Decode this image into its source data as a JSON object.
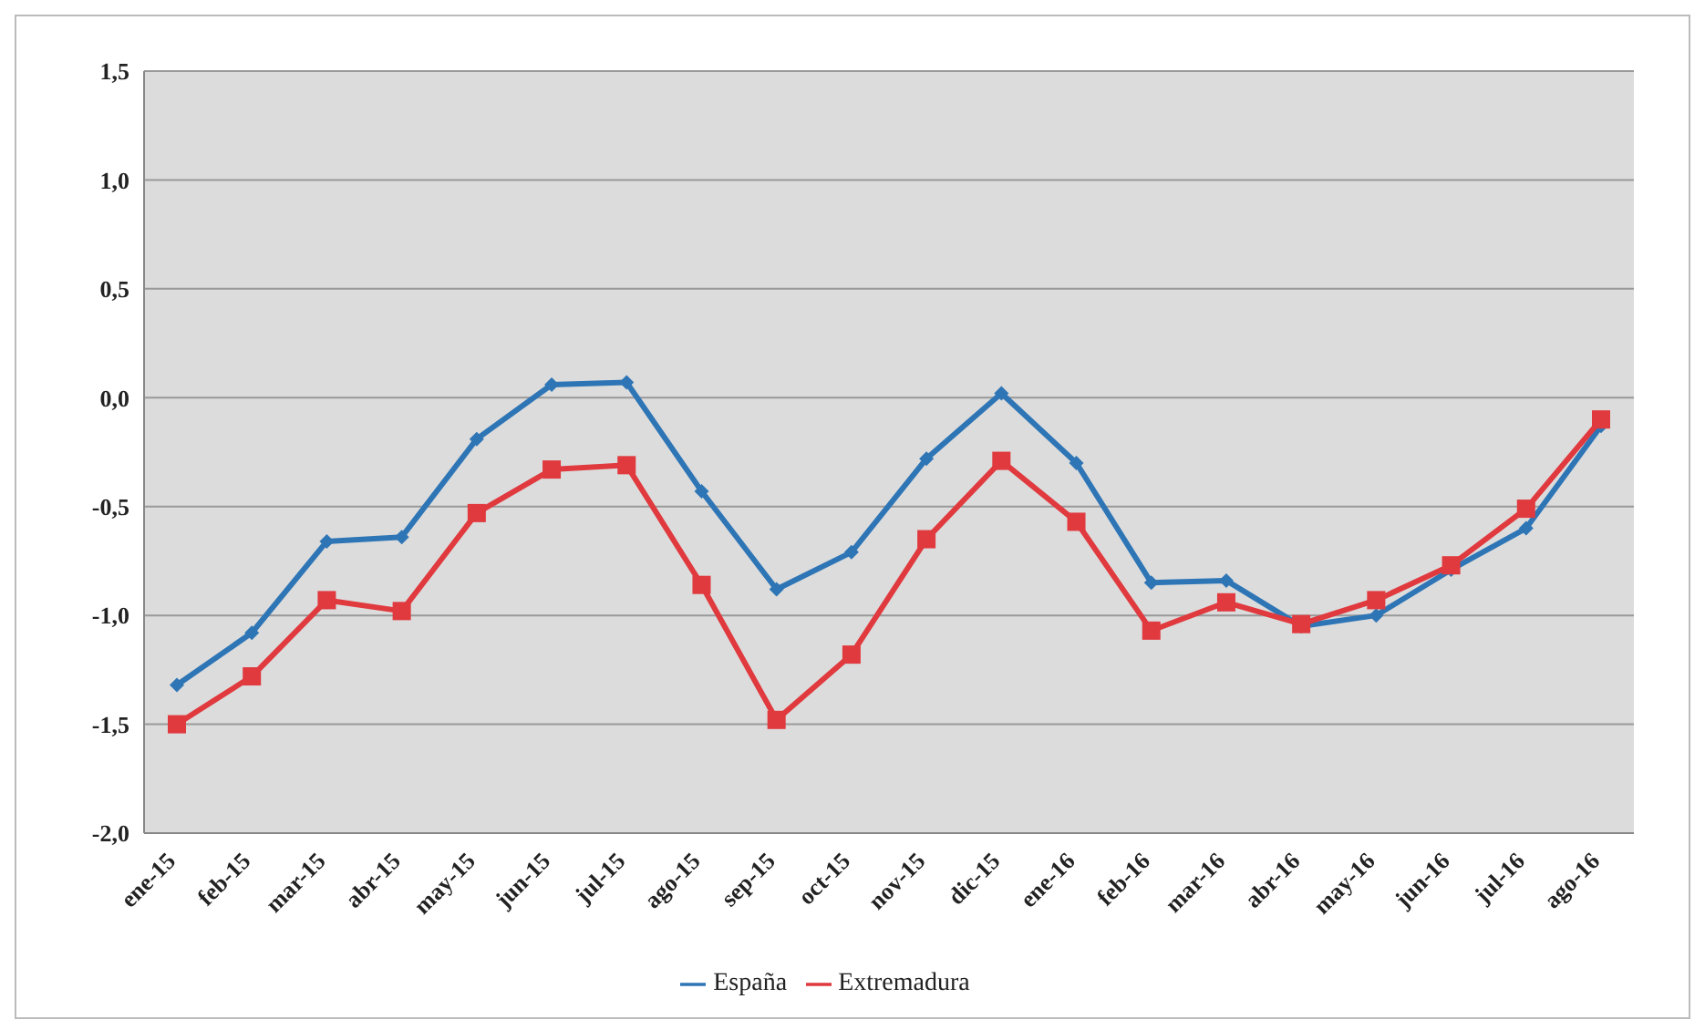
{
  "chart_data": {
    "type": "line",
    "categories": [
      "ene-15",
      "feb-15",
      "mar-15",
      "abr-15",
      "may-15",
      "jun-15",
      "jul-15",
      "ago-15",
      "sep-15",
      "oct-15",
      "nov-15",
      "dic-15",
      "ene-16",
      "feb-16",
      "mar-16",
      "abr-16",
      "may-16",
      "jun-16",
      "jul-16",
      "ago-16"
    ],
    "series": [
      {
        "name": "España",
        "color": "#2e75b6",
        "marker": "diamond",
        "values": [
          -1.32,
          -1.08,
          -0.66,
          -0.64,
          -0.19,
          0.06,
          0.07,
          -0.43,
          -0.88,
          -0.71,
          -0.28,
          0.02,
          -0.3,
          -0.85,
          -0.84,
          -1.05,
          -1.0,
          -0.79,
          -0.6,
          -0.13
        ]
      },
      {
        "name": "Extremadura",
        "color": "#e0393e",
        "marker": "square",
        "values": [
          -1.5,
          -1.28,
          -0.93,
          -0.98,
          -0.53,
          -0.33,
          -0.31,
          -0.86,
          -1.48,
          -1.18,
          -0.65,
          -0.29,
          -0.57,
          -1.07,
          -0.94,
          -1.04,
          -0.93,
          -0.77,
          -0.51,
          -0.1
        ]
      }
    ],
    "ylim": [
      -2,
      1.5
    ],
    "yticks": [
      {
        "value": -2,
        "label": "-2,0"
      },
      {
        "value": -1.5,
        "label": "-1,5"
      },
      {
        "value": -1,
        "label": "-1,0"
      },
      {
        "value": -0.5,
        "label": "-0,5"
      },
      {
        "value": 0,
        "label": "0,0"
      },
      {
        "value": 0.5,
        "label": "0,5"
      },
      {
        "value": 1,
        "label": "1,0"
      },
      {
        "value": 1.5,
        "label": "1,5"
      }
    ],
    "grid": "y",
    "legend": "bottom",
    "line_style": "solid"
  }
}
